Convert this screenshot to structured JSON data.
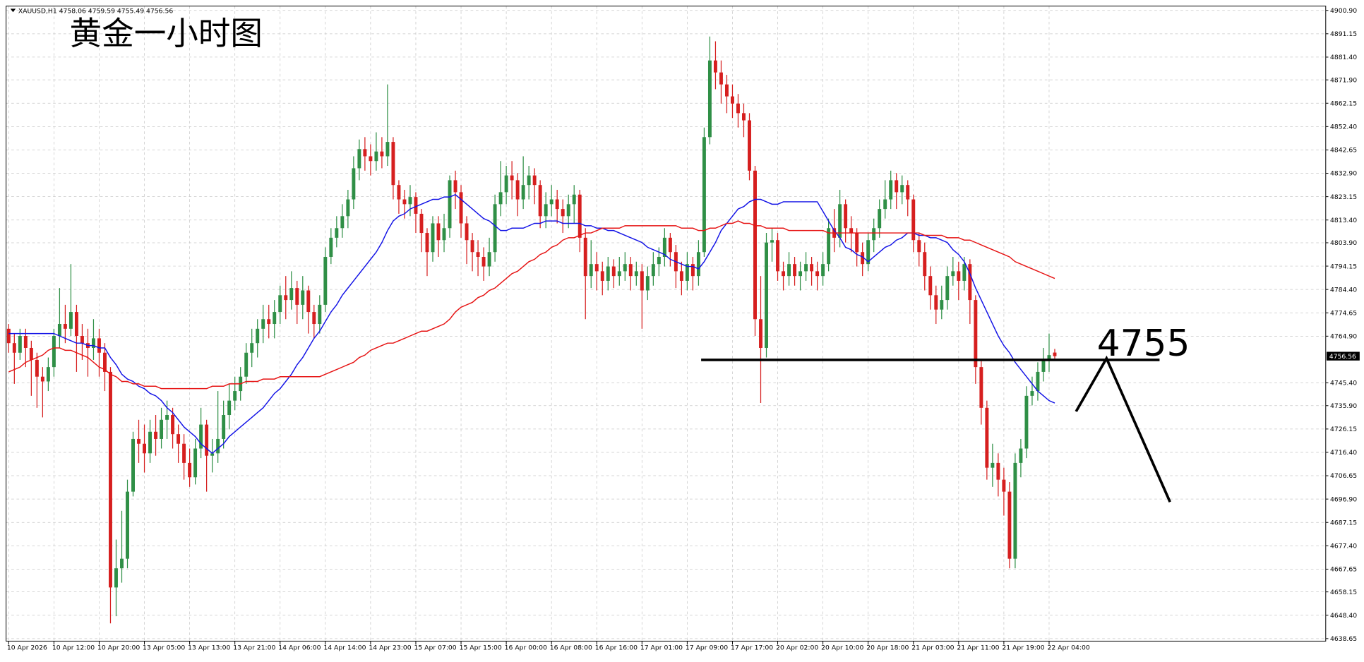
{
  "chart_data": {
    "type": "candlestick",
    "symbol": "XAUUSD,H1",
    "title": "黄金一小时图",
    "level": 4755,
    "up_color": "#2f8f46",
    "down_color": "#d61f1f",
    "grid": true,
    "ylim": [
      4637.6,
      4902.7
    ],
    "yticks": [
      {
        "value": 4900.9,
        "label": "4900.90"
      },
      4891.15,
      {
        "value": 4881.4,
        "label": "4881.40"
      },
      {
        "value": 4871.9,
        "label": "4871.90"
      },
      4862.15,
      {
        "value": 4852.4,
        "label": "4852.40"
      },
      4842.65,
      {
        "value": 4832.9,
        "label": "4832.90"
      },
      4823.15,
      {
        "value": 4813.4,
        "label": "4813.40"
      },
      {
        "value": 4803.9,
        "label": "4803.90"
      },
      4794.15,
      {
        "value": 4784.4,
        "label": "4784.40"
      },
      4774.65,
      {
        "value": 4764.9,
        "label": "4764.90"
      },
      {
        "value": 4745.4,
        "label": "4745.40"
      },
      {
        "value": 4735.9,
        "label": "4735.90"
      },
      4726.15,
      {
        "value": 4716.4,
        "label": "4716.40"
      },
      4706.65,
      {
        "value": 4696.9,
        "label": "4696.90"
      },
      4687.15,
      {
        "value": 4677.4,
        "label": "4677.40"
      },
      4667.65,
      4658.15,
      {
        "value": 4648.4,
        "label": "4648.40"
      },
      4638.65
    ],
    "categories": [
      "10 Apr 2026",
      null,
      null,
      null,
      null,
      null,
      null,
      null,
      "10 Apr 12:00",
      null,
      null,
      null,
      null,
      null,
      null,
      null,
      "10 Apr 20:00",
      null,
      null,
      null,
      null,
      null,
      null,
      null,
      "13 Apr 05:00",
      null,
      null,
      null,
      null,
      null,
      null,
      null,
      "13 Apr 13:00",
      null,
      null,
      null,
      null,
      null,
      null,
      null,
      "13 Apr 21:00",
      null,
      null,
      null,
      null,
      null,
      null,
      null,
      "14 Apr 06:00",
      null,
      null,
      null,
      null,
      null,
      null,
      null,
      "14 Apr 14:00",
      null,
      null,
      null,
      null,
      null,
      null,
      null,
      "14 Apr 23:00",
      null,
      null,
      null,
      null,
      null,
      null,
      null,
      "15 Apr 07:00",
      null,
      null,
      null,
      null,
      null,
      null,
      null,
      "15 Apr 15:00",
      null,
      null,
      null,
      null,
      null,
      null,
      null,
      "16 Apr 00:00",
      null,
      null,
      null,
      null,
      null,
      null,
      null,
      "16 Apr 08:00",
      null,
      null,
      null,
      null,
      null,
      null,
      null,
      "16 Apr 16:00",
      null,
      null,
      null,
      null,
      null,
      null,
      null,
      "17 Apr 01:00",
      null,
      null,
      null,
      null,
      null,
      null,
      null,
      "17 Apr 09:00",
      null,
      null,
      null,
      null,
      null,
      null,
      null,
      "17 Apr 17:00",
      null,
      null,
      null,
      null,
      null,
      null,
      null,
      "20 Apr 02:00",
      null,
      null,
      null,
      null,
      null,
      null,
      null,
      "20 Apr 10:00",
      null,
      null,
      null,
      null,
      null,
      null,
      null,
      "20 Apr 18:00",
      null,
      null,
      null,
      null,
      null,
      null,
      null,
      "21 Apr 03:00",
      null,
      null,
      null,
      null,
      null,
      null,
      null,
      "21 Apr 11:00",
      null,
      null,
      null,
      null,
      null,
      null,
      null,
      "21 Apr 19:00",
      null,
      null,
      null,
      null,
      null,
      null,
      null,
      "22 Apr 04:00",
      null
    ],
    "open": [
      4768,
      4762,
      4758,
      4765,
      4760,
      4755,
      4748,
      4746,
      4752,
      4765,
      4770,
      4768,
      4775,
      4765,
      4762,
      4760,
      4764,
      4758,
      4750,
      4660,
      4668,
      4672,
      4700,
      4722,
      4720,
      4716,
      4725,
      4722,
      4730,
      4732,
      4724,
      4720,
      4712,
      4706,
      4718,
      4728,
      4715,
      4716,
      4722,
      4732,
      4738,
      4742,
      4748,
      4758,
      4762,
      4768,
      4772,
      4770,
      4775,
      4782,
      4780,
      4785,
      4778,
      4784,
      4775,
      4770,
      4778,
      4798,
      4806,
      4810,
      4815,
      4822,
      4835,
      4843,
      4840,
      4838,
      4842,
      4840,
      4846,
      4828,
      4822,
      4820,
      4823,
      4816,
      4808,
      4800,
      4812,
      4805,
      4810,
      4830,
      4825,
      4812,
      4805,
      4800,
      4798,
      4794,
      4800,
      4820,
      4825,
      4832,
      4830,
      4822,
      4828,
      4832,
      4828,
      4815,
      4820,
      4822,
      4818,
      4815,
      4820,
      4824,
      4806,
      4790,
      4795,
      4792,
      4788,
      4794,
      4790,
      4792,
      4795,
      4790,
      4792,
      4784,
      4790,
      4795,
      4798,
      4806,
      4800,
      4792,
      4788,
      4795,
      4790,
      4800,
      4848,
      4880,
      4875,
      4870,
      4865,
      4862,
      4858,
      4855,
      4834,
      4772,
      4760,
      4804,
      4805,
      4792,
      4790,
      4795,
      4790,
      4792,
      4795,
      4792,
      4790,
      4795,
      4810,
      4806,
      4820,
      4810,
      4808,
      4800,
      4795,
      4805,
      4810,
      4818,
      4822,
      4830,
      4825,
      4828,
      4822,
      4805,
      4800,
      4790,
      4782,
      4776,
      4780,
      4790,
      4792,
      4788,
      4795,
      4780,
      4752,
      4735,
      4710,
      4712,
      4705,
      4700,
      4672,
      4712,
      4718,
      4740,
      4742,
      4750,
      4755,
      4758.06
    ],
    "high": [
      4770,
      4766,
      4768,
      4768,
      4763,
      4758,
      4752,
      4756,
      4768,
      4785,
      4778,
      4795,
      4778,
      4770,
      4768,
      4772,
      4768,
      4762,
      4752,
      4680,
      4692,
      4705,
      4725,
      4730,
      4728,
      4730,
      4732,
      4735,
      4738,
      4735,
      4728,
      4724,
      4718,
      4722,
      4735,
      4730,
      4722,
      4742,
      4738,
      4745,
      4748,
      4752,
      4762,
      4768,
      4772,
      4778,
      4778,
      4780,
      4786,
      4790,
      4792,
      4788,
      4790,
      4786,
      4778,
      4782,
      4802,
      4810,
      4815,
      4820,
      4826,
      4840,
      4847,
      4848,
      4845,
      4850,
      4848,
      4870,
      4848,
      4830,
      4826,
      4828,
      4825,
      4818,
      4810,
      4815,
      4815,
      4816,
      4832,
      4834,
      4828,
      4815,
      4808,
      4805,
      4802,
      4806,
      4824,
      4838,
      4836,
      4838,
      4833,
      4840,
      4836,
      4835,
      4830,
      4825,
      4828,
      4826,
      4822,
      4824,
      4828,
      4826,
      4810,
      4805,
      4800,
      4796,
      4798,
      4797,
      4798,
      4800,
      4798,
      4796,
      4795,
      4794,
      4800,
      4802,
      4810,
      4808,
      4803,
      4796,
      4800,
      4798,
      4805,
      4852,
      4890,
      4888,
      4880,
      4874,
      4870,
      4866,
      4862,
      4858,
      4836,
      4790,
      4808,
      4810,
      4808,
      4796,
      4800,
      4798,
      4796,
      4800,
      4798,
      4796,
      4800,
      4814,
      4818,
      4826,
      4822,
      4815,
      4810,
      4804,
      4808,
      4814,
      4822,
      4830,
      4834,
      4833,
      4832,
      4830,
      4824,
      4808,
      4804,
      4794,
      4786,
      4786,
      4794,
      4798,
      4796,
      4798,
      4797,
      4782,
      4755,
      4738,
      4720,
      4716,
      4710,
      4704,
      4716,
      4722,
      4744,
      4748,
      4754,
      4760,
      4766,
      4759.59
    ],
    "low": [
      4758,
      4745,
      4755,
      4752,
      4740,
      4735,
      4731,
      4742,
      4748,
      4760,
      4762,
      4765,
      4750,
      4755,
      4748,
      4755,
      4748,
      4742,
      4645,
      4648,
      4662,
      4668,
      4698,
      4712,
      4708,
      4712,
      4715,
      4718,
      4722,
      4718,
      4712,
      4705,
      4702,
      4703,
      4714,
      4700,
      4708,
      4712,
      4718,
      4726,
      4734,
      4738,
      4745,
      4752,
      4756,
      4762,
      4764,
      4764,
      4770,
      4772,
      4776,
      4770,
      4772,
      4766,
      4764,
      4766,
      4775,
      4795,
      4802,
      4806,
      4810,
      4818,
      4830,
      4834,
      4832,
      4834,
      4835,
      4836,
      4822,
      4816,
      4814,
      4815,
      4808,
      4800,
      4790,
      4796,
      4798,
      4800,
      4806,
      4818,
      4806,
      4795,
      4792,
      4790,
      4788,
      4790,
      4796,
      4815,
      4820,
      4822,
      4815,
      4818,
      4822,
      4820,
      4810,
      4810,
      4815,
      4812,
      4808,
      4810,
      4812,
      4800,
      4772,
      4785,
      4784,
      4782,
      4784,
      4785,
      4786,
      4788,
      4784,
      4786,
      4768,
      4780,
      4786,
      4790,
      4794,
      4794,
      4785,
      4782,
      4784,
      4784,
      4786,
      4798,
      4845,
      4868,
      4862,
      4858,
      4856,
      4852,
      4848,
      4830,
      4765,
      4737,
      4756,
      4796,
      4788,
      4784,
      4786,
      4786,
      4784,
      4788,
      4786,
      4784,
      4786,
      4792,
      4800,
      4802,
      4804,
      4800,
      4794,
      4790,
      4792,
      4800,
      4806,
      4814,
      4818,
      4818,
      4820,
      4815,
      4800,
      4794,
      4784,
      4776,
      4770,
      4772,
      4776,
      4786,
      4780,
      4784,
      4770,
      4745,
      4728,
      4705,
      4702,
      4698,
      4690,
      4668,
      4668,
      4706,
      4714,
      4736,
      4738,
      4746,
      4750,
      4755.49
    ],
    "close": [
      4762,
      4758,
      4765,
      4760,
      4755,
      4748,
      4746,
      4752,
      4765,
      4770,
      4768,
      4775,
      4765,
      4762,
      4760,
      4764,
      4758,
      4750,
      4660,
      4668,
      4672,
      4700,
      4722,
      4720,
      4716,
      4725,
      4722,
      4730,
      4732,
      4724,
      4720,
      4712,
      4706,
      4718,
      4728,
      4715,
      4716,
      4722,
      4732,
      4738,
      4742,
      4748,
      4758,
      4762,
      4768,
      4772,
      4770,
      4775,
      4782,
      4780,
      4785,
      4778,
      4784,
      4775,
      4770,
      4778,
      4798,
      4806,
      4810,
      4815,
      4822,
      4835,
      4843,
      4840,
      4838,
      4842,
      4840,
      4846,
      4828,
      4822,
      4820,
      4823,
      4816,
      4808,
      4800,
      4812,
      4805,
      4810,
      4830,
      4825,
      4812,
      4805,
      4800,
      4798,
      4794,
      4800,
      4820,
      4825,
      4832,
      4830,
      4822,
      4828,
      4832,
      4828,
      4815,
      4820,
      4822,
      4818,
      4815,
      4820,
      4824,
      4806,
      4790,
      4795,
      4792,
      4788,
      4794,
      4790,
      4792,
      4795,
      4790,
      4792,
      4784,
      4790,
      4795,
      4798,
      4806,
      4800,
      4792,
      4788,
      4795,
      4790,
      4800,
      4848,
      4880,
      4875,
      4870,
      4865,
      4862,
      4858,
      4855,
      4834,
      4772,
      4760,
      4804,
      4805,
      4792,
      4790,
      4795,
      4790,
      4792,
      4795,
      4792,
      4790,
      4795,
      4810,
      4806,
      4820,
      4810,
      4808,
      4800,
      4795,
      4805,
      4810,
      4818,
      4822,
      4830,
      4825,
      4828,
      4822,
      4805,
      4800,
      4790,
      4782,
      4776,
      4780,
      4790,
      4792,
      4788,
      4795,
      4780,
      4752,
      4735,
      4710,
      4712,
      4705,
      4700,
      4672,
      4712,
      4718,
      4740,
      4742,
      4750,
      4755,
      4757,
      4756.56
    ],
    "series": [
      {
        "color": "#1414e6",
        "values": [
          4766,
          4766,
          4766,
          4766,
          4766,
          4766,
          4766,
          4766,
          4766,
          4765,
          4764,
          4763,
          4762,
          4762,
          4761,
          4761,
          4760,
          4760,
          4756,
          4753,
          4749,
          4747,
          4746,
          4744,
          4743,
          4741,
          4740,
          4738,
          4735,
          4733,
          4730,
          4727,
          4725,
          4723,
          4720,
          4718,
          4716,
          4718,
          4720,
          4723,
          4725,
          4727,
          4729,
          4731,
          4733,
          4735,
          4738,
          4741,
          4743,
          4746,
          4749,
          4753,
          4756,
          4760,
          4764,
          4767,
          4771,
          4775,
          4778,
          4782,
          4785,
          4788,
          4791,
          4794,
          4797,
          4800,
          4804,
          4809,
          4813,
          4815,
          4816,
          4818,
          4819,
          4820,
          4821,
          4822,
          4822,
          4823,
          4823,
          4824,
          4822,
          4820,
          4818,
          4816,
          4814,
          4813,
          4811,
          4809,
          4809,
          4810,
          4810,
          4810,
          4811,
          4812,
          4812,
          4813,
          4813,
          4813,
          4812,
          4812,
          4812,
          4812,
          4811,
          4811,
          4810,
          4810,
          4809,
          4809,
          4808,
          4807,
          4806,
          4805,
          4804,
          4802,
          4801,
          4800,
          4799,
          4797,
          4796,
          4795,
          4794,
          4794,
          4793,
          4796,
          4800,
          4804,
          4809,
          4812,
          4815,
          4818,
          4819,
          4821,
          4822,
          4822,
          4821,
          4820,
          4820,
          4821,
          4821,
          4821,
          4821,
          4821,
          4821,
          4821,
          4817,
          4813,
          4809,
          4806,
          4802,
          4801,
          4799,
          4798,
          4796,
          4798,
          4800,
          4802,
          4803,
          4805,
          4806,
          4808,
          4808,
          4807,
          4807,
          4806,
          4806,
          4805,
          4804,
          4801,
          4799,
          4796,
          4791,
          4785,
          4780,
          4775,
          4770,
          4765,
          4761,
          4758,
          4754,
          4751,
          4748,
          4745,
          4742,
          4740,
          4738,
          4737
        ]
      },
      {
        "color": "#e61414",
        "values": [
          4750,
          4751,
          4752,
          4754,
          4755,
          4756,
          4757,
          4759,
          4760,
          4760,
          4759,
          4759,
          4758,
          4757,
          4756,
          4754,
          4752,
          4751,
          4749,
          4748,
          4746,
          4746,
          4745,
          4745,
          4744,
          4744,
          4744,
          4743,
          4743,
          4743,
          4743,
          4743,
          4743,
          4743,
          4743,
          4743,
          4744,
          4744,
          4744,
          4745,
          4745,
          4745,
          4746,
          4746,
          4746,
          4747,
          4747,
          4747,
          4748,
          4748,
          4748,
          4748,
          4748,
          4748,
          4748,
          4748,
          4749,
          4750,
          4751,
          4752,
          4753,
          4754,
          4756,
          4757,
          4759,
          4760,
          4761,
          4762,
          4762,
          4763,
          4764,
          4765,
          4766,
          4767,
          4767,
          4768,
          4769,
          4770,
          4772,
          4775,
          4777,
          4778,
          4779,
          4781,
          4782,
          4784,
          4785,
          4787,
          4789,
          4791,
          4792,
          4794,
          4796,
          4797,
          4799,
          4800,
          4802,
          4803,
          4805,
          4806,
          4806,
          4807,
          4808,
          4808,
          4809,
          4810,
          4810,
          4810,
          4810,
          4811,
          4811,
          4811,
          4811,
          4811,
          4811,
          4811,
          4811,
          4811,
          4811,
          4810,
          4810,
          4810,
          4809,
          4809,
          4810,
          4810,
          4811,
          4812,
          4812,
          4813,
          4812,
          4812,
          4811,
          4811,
          4810,
          4810,
          4810,
          4810,
          4809,
          4809,
          4809,
          4809,
          4809,
          4809,
          4809,
          4808,
          4808,
          4808,
          4808,
          4808,
          4808,
          4808,
          4808,
          4808,
          4808,
          4808,
          4808,
          4808,
          4808,
          4808,
          4808,
          4808,
          4807,
          4807,
          4807,
          4807,
          4806,
          4806,
          4806,
          4805,
          4805,
          4804,
          4803,
          4802,
          4801,
          4800,
          4799,
          4798,
          4796,
          4795,
          4794,
          4793,
          4792,
          4791,
          4790,
          4789
        ]
      }
    ]
  }
}
